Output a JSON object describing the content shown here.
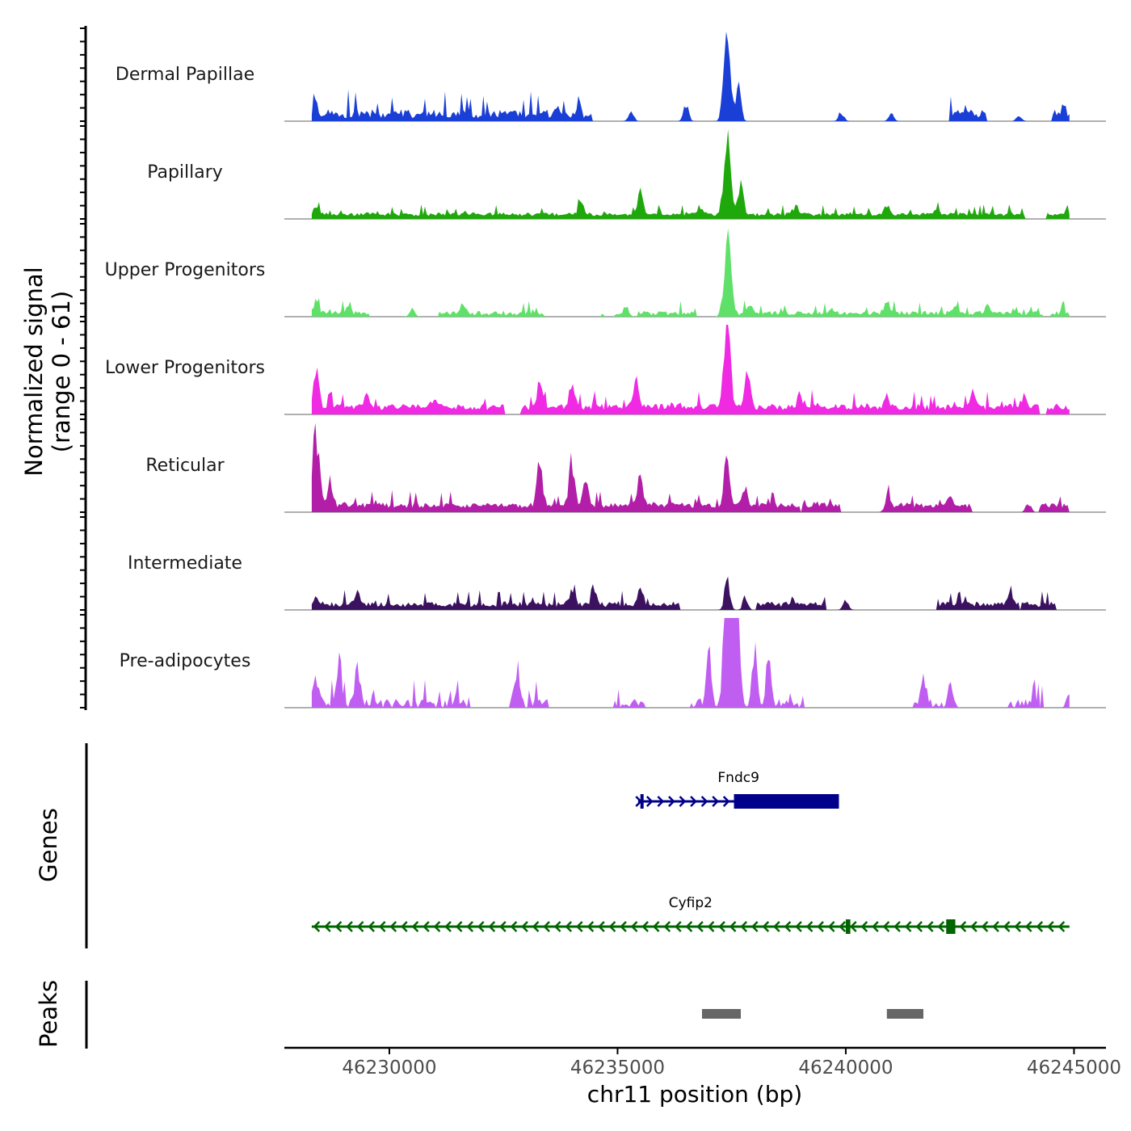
{
  "chart_data": {
    "type": "area",
    "title": "",
    "y_axis_label_line1": "Normalized signal",
    "y_axis_label_line2": "(range 0 - 61)",
    "ylim": [
      0,
      61
    ],
    "xlabel": "chr11 position (bp)",
    "xlim": [
      46227700,
      46245700
    ],
    "x_ticks": [
      46230000,
      46235000,
      46240000,
      46245000
    ],
    "x_tick_labels": [
      "46230000",
      "46235000",
      "46240000",
      "46245000"
    ],
    "region": {
      "chrom": "chr11",
      "start": 46228300,
      "end": 46244900
    },
    "tracks": [
      {
        "name": "Dermal Papillae",
        "color": "#1a3fd6",
        "baseline": 2,
        "noise": 10,
        "density": 0.55,
        "peaks": [
          [
            46228400,
            4
          ],
          [
            46230100,
            4
          ],
          [
            46232500,
            3
          ],
          [
            46233700,
            4
          ],
          [
            46235300,
            6
          ],
          [
            46236500,
            12
          ],
          [
            46237400,
            60
          ],
          [
            46237650,
            22
          ],
          [
            46239900,
            6
          ],
          [
            46241000,
            5
          ],
          [
            46242600,
            4
          ],
          [
            46243800,
            4
          ]
        ]
      },
      {
        "name": "Papillary",
        "color": "#1fa80b",
        "baseline": 2,
        "noise": 4,
        "density": 0.9,
        "peaks": [
          [
            46228400,
            5
          ],
          [
            46234200,
            8
          ],
          [
            46235500,
            16
          ],
          [
            46236800,
            5
          ],
          [
            46237400,
            58
          ],
          [
            46237700,
            20
          ],
          [
            46238900,
            6
          ],
          [
            46240900,
            6
          ],
          [
            46242000,
            3
          ]
        ]
      },
      {
        "name": "Upper Progenitors",
        "color": "#5fe068",
        "baseline": 1,
        "noise": 5,
        "density": 0.7,
        "peaks": [
          [
            46228400,
            8
          ],
          [
            46229100,
            4
          ],
          [
            46230500,
            6
          ],
          [
            46231600,
            6
          ],
          [
            46235200,
            6
          ],
          [
            46237400,
            52
          ],
          [
            46237900,
            7
          ],
          [
            46240900,
            8
          ],
          [
            46242400,
            5
          ],
          [
            46243100,
            5
          ]
        ]
      },
      {
        "name": "Lower Progenitors",
        "color": "#f029e3",
        "baseline": 3,
        "noise": 7,
        "density": 0.85,
        "peaks": [
          [
            46228400,
            28
          ],
          [
            46229500,
            8
          ],
          [
            46231000,
            6
          ],
          [
            46233300,
            16
          ],
          [
            46234000,
            15
          ],
          [
            46235400,
            20
          ],
          [
            46237400,
            62
          ],
          [
            46237850,
            26
          ],
          [
            46239000,
            8
          ],
          [
            46240900,
            8
          ],
          [
            46242800,
            10
          ],
          [
            46243900,
            8
          ]
        ]
      },
      {
        "name": "Reticular",
        "color": "#b21ea8",
        "baseline": 3,
        "noise": 6,
        "density": 0.8,
        "peaks": [
          [
            46228400,
            48
          ],
          [
            46228700,
            14
          ],
          [
            46233300,
            30
          ],
          [
            46234000,
            30
          ],
          [
            46234300,
            22
          ],
          [
            46235500,
            20
          ],
          [
            46237400,
            38
          ],
          [
            46237800,
            12
          ],
          [
            46240900,
            8
          ],
          [
            46242300,
            6
          ],
          [
            46244000,
            6
          ]
        ]
      },
      {
        "name": "Intermediate",
        "color": "#3c1160",
        "baseline": 2,
        "noise": 6,
        "density": 0.65,
        "peaks": [
          [
            46228400,
            6
          ],
          [
            46229300,
            8
          ],
          [
            46234000,
            10
          ],
          [
            46234500,
            8
          ],
          [
            46235500,
            10
          ],
          [
            46237400,
            20
          ],
          [
            46237800,
            7
          ],
          [
            46240000,
            6
          ],
          [
            46243600,
            6
          ]
        ]
      },
      {
        "name": "Pre-adipocytes",
        "color": "#c05ef2",
        "baseline": 0,
        "noise": 10,
        "density": 0.25,
        "peaks": [
          [
            46228400,
            18
          ],
          [
            46228900,
            30
          ],
          [
            46229300,
            24
          ],
          [
            46232800,
            24
          ],
          [
            46237000,
            40
          ],
          [
            46237400,
            100
          ],
          [
            46237600,
            95
          ],
          [
            46238000,
            40
          ],
          [
            46238300,
            30
          ],
          [
            46241700,
            22
          ],
          [
            46242300,
            18
          ],
          [
            46244900,
            12
          ]
        ]
      }
    ],
    "genes": [
      {
        "name": "Fndc9",
        "label": "Fndc9",
        "color": "#00008b",
        "strand": "+",
        "start": 46235450,
        "end": 46239850,
        "exons": [
          [
            46235500,
            46235560
          ],
          [
            46237550,
            46239850
          ]
        ]
      },
      {
        "name": "Cyfip2",
        "label": "Cyfip2",
        "color": "#006400",
        "strand": "-",
        "start": 46228300,
        "end": 46244900,
        "exons": [
          [
            46240000,
            46240100
          ],
          [
            46242200,
            46242400
          ]
        ]
      }
    ],
    "genes_axis_label": "Genes",
    "peaks_axis_label": "Peaks",
    "peaks_color": "#666666",
    "peaks": [
      [
        46236850,
        46237700
      ],
      [
        46240900,
        46241700
      ]
    ]
  }
}
